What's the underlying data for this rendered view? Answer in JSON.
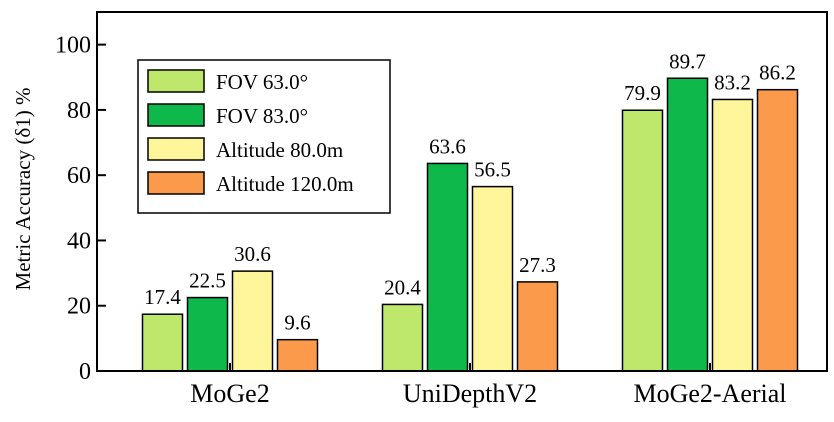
{
  "chart_data": {
    "type": "bar",
    "title": "",
    "xlabel": "",
    "ylabel": "Metric Accuracy (δ1) %",
    "ylim": [
      0,
      110
    ],
    "yticks": [
      0,
      20,
      40,
      60,
      80,
      100
    ],
    "grid": false,
    "legend_position": "top-left",
    "categories": [
      "MoGe2",
      "UniDepthV2",
      "MoGe2-Aerial"
    ],
    "series": [
      {
        "name": "FOV 63.0°",
        "color": "#bde86c",
        "values": [
          17.4,
          20.4,
          79.9
        ],
        "labels": [
          "17.4",
          "20.4",
          "79.9"
        ]
      },
      {
        "name": "FOV 83.0°",
        "color": "#0fb84a",
        "values": [
          22.5,
          63.6,
          89.7
        ],
        "labels": [
          "22.5",
          "63.6",
          "89.7"
        ]
      },
      {
        "name": "Altitude 80.0m",
        "color": "#fff59a",
        "values": [
          30.6,
          56.5,
          83.2
        ],
        "labels": [
          "30.6",
          "56.5",
          "83.2"
        ]
      },
      {
        "name": "Altitude 120.0m",
        "color": "#fa9a4a",
        "values": [
          9.6,
          27.3,
          86.2
        ],
        "labels": [
          "9.6",
          "27.3",
          "86.2"
        ]
      }
    ]
  }
}
